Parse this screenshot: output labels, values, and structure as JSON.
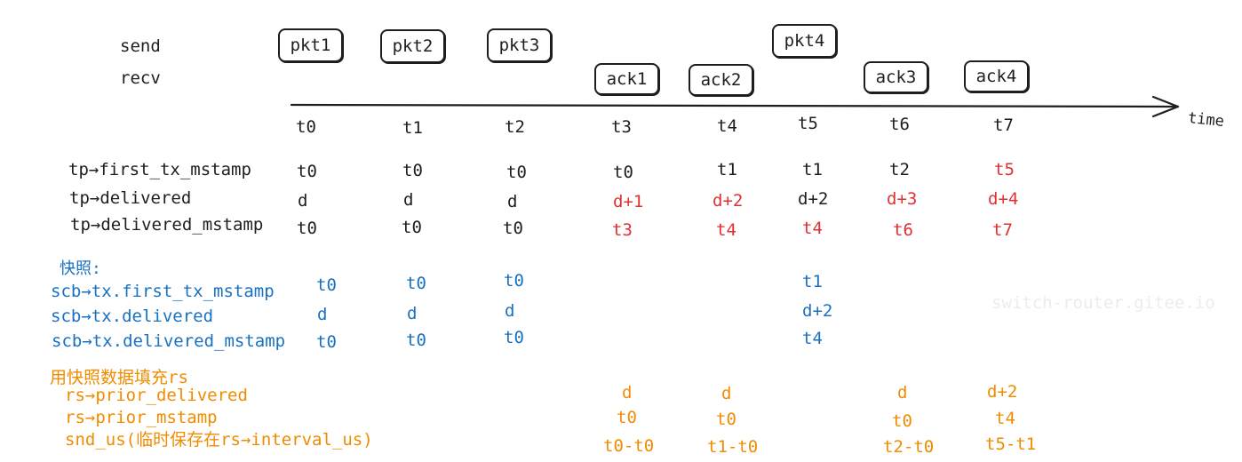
{
  "rows": {
    "send": "send",
    "recv": "recv"
  },
  "packets": [
    "pkt1",
    "pkt2",
    "pkt3",
    "pkt4"
  ],
  "acks": [
    "ack1",
    "ack2",
    "ack3",
    "ack4"
  ],
  "timeline": {
    "label": "time",
    "ticks": [
      "t0",
      "t1",
      "t2",
      "t3",
      "t4",
      "t5",
      "t6",
      "t7"
    ]
  },
  "tp": {
    "labels": [
      "tp→first_tx_mstamp",
      "tp→delivered",
      "tp→delivered_mstamp"
    ],
    "first_tx_mstamp": [
      "t0",
      "t0",
      "t0",
      "t0",
      "t1",
      "t1",
      "t2",
      "t5"
    ],
    "delivered": [
      "d",
      "d",
      "d",
      "d+1",
      "d+2",
      "d+2",
      "d+3",
      "d+4"
    ],
    "delivered_mstamp": [
      "t0",
      "t0",
      "t0",
      "t3",
      "t4",
      "t4",
      "t6",
      "t7"
    ]
  },
  "snapshot": {
    "title": "快照:",
    "labels": [
      "scb→tx.first_tx_mstamp",
      "scb→tx.delivered",
      "scb→tx.delivered_mstamp"
    ],
    "first_tx_mstamp": [
      "t0",
      "t0",
      "t0",
      "t1"
    ],
    "delivered": [
      "d",
      "d",
      "d",
      "d+2"
    ],
    "delivered_mstamp": [
      "t0",
      "t0",
      "t0",
      "t4"
    ]
  },
  "rs": {
    "title": "用快照数据填充rs",
    "labels": [
      "rs→prior_delivered",
      "rs→prior_mstamp",
      "snd_us(临时保存在rs→interval_us)"
    ],
    "prior_delivered": [
      "d",
      "d",
      "d",
      "d+2"
    ],
    "prior_mstamp": [
      "t0",
      "t0",
      "t0",
      "t4"
    ],
    "snd_us": [
      "t0-t0",
      "t1-t0",
      "t2-t0",
      "t5-t1"
    ]
  },
  "watermark": "switch-router.gitee.io",
  "colors": {
    "ink": "#1e1e1e",
    "changed": "#e03131",
    "snapshot": "#1971c2",
    "rs": "#f08c00"
  }
}
